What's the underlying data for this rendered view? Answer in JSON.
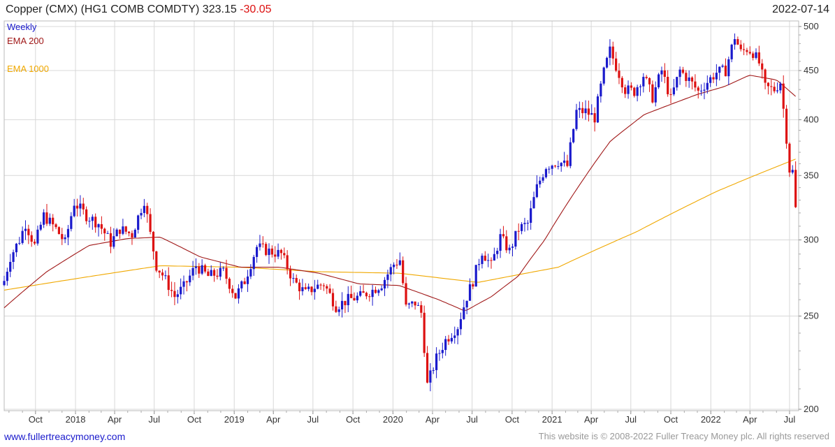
{
  "header": {
    "title": "Copper (CMX) (HG1 COMB COMDTY) 323.15",
    "change": "-30.05",
    "date": "2022-07-14"
  },
  "legend": {
    "period": "Weekly",
    "ema200": "EMA 200",
    "ema1000": "EMA 1000"
  },
  "footer": {
    "site_link": "www.fullertreacymoney.com",
    "copyright": "This website is © 2008-2022 Fuller Treacy Money plc. All rights reserved"
  },
  "colors": {
    "up": "#1a1acc",
    "down": "#dd1111",
    "ema200": "#a01818",
    "ema1000": "#f0a800",
    "grid": "#d8d8d8",
    "change_text": "#dd1111",
    "period_text": "#1a1acc",
    "link_text": "#1a1acc"
  },
  "chart_data": {
    "type": "candlestick",
    "interval": "weekly",
    "scale": "log",
    "ylim": [
      200,
      505
    ],
    "y_ticks": [
      200,
      250,
      300,
      350,
      400,
      450,
      500
    ],
    "x_start": "2017-07-21",
    "x_end": "2022-07-22",
    "x_ticks": [
      {
        "date": "2017-10-01",
        "label": "Oct"
      },
      {
        "date": "2018-01-01",
        "label": "2018"
      },
      {
        "date": "2018-04-01",
        "label": "Apr"
      },
      {
        "date": "2018-07-01",
        "label": "Jul"
      },
      {
        "date": "2018-10-01",
        "label": "Oct"
      },
      {
        "date": "2019-01-01",
        "label": "2019"
      },
      {
        "date": "2019-04-01",
        "label": "Apr"
      },
      {
        "date": "2019-07-01",
        "label": "Jul"
      },
      {
        "date": "2019-10-01",
        "label": "Oct"
      },
      {
        "date": "2020-01-01",
        "label": "2020"
      },
      {
        "date": "2020-04-01",
        "label": "Apr"
      },
      {
        "date": "2020-07-01",
        "label": "Jul"
      },
      {
        "date": "2020-10-01",
        "label": "Oct"
      },
      {
        "date": "2021-01-01",
        "label": "2021"
      },
      {
        "date": "2021-04-01",
        "label": "Apr"
      },
      {
        "date": "2021-07-01",
        "label": "Jul"
      },
      {
        "date": "2021-10-01",
        "label": "Oct"
      },
      {
        "date": "2022-01-01",
        "label": "2022"
      },
      {
        "date": "2022-04-01",
        "label": "Apr"
      },
      {
        "date": "2022-07-01",
        "label": "Jul"
      }
    ],
    "close_keypoints": [
      [
        "2017-07-21",
        272
      ],
      [
        "2017-08-04",
        288
      ],
      [
        "2017-08-25",
        300
      ],
      [
        "2017-09-08",
        312
      ],
      [
        "2017-09-29",
        296
      ],
      [
        "2017-10-20",
        318
      ],
      [
        "2017-11-17",
        308
      ],
      [
        "2017-12-08",
        298
      ],
      [
        "2017-12-29",
        328
      ],
      [
        "2018-01-26",
        318
      ],
      [
        "2018-02-23",
        312
      ],
      [
        "2018-03-23",
        298
      ],
      [
        "2018-04-13",
        308
      ],
      [
        "2018-05-11",
        304
      ],
      [
        "2018-06-08",
        330
      ],
      [
        "2018-06-22",
        304
      ],
      [
        "2018-07-06",
        282
      ],
      [
        "2018-07-20",
        276
      ],
      [
        "2018-08-17",
        262
      ],
      [
        "2018-09-07",
        268
      ],
      [
        "2018-10-05",
        282
      ],
      [
        "2018-11-02",
        275
      ],
      [
        "2018-12-07",
        278
      ],
      [
        "2019-01-04",
        262
      ],
      [
        "2019-01-25",
        272
      ],
      [
        "2019-02-22",
        295
      ],
      [
        "2019-03-22",
        292
      ],
      [
        "2019-04-19",
        290
      ],
      [
        "2019-05-17",
        272
      ],
      [
        "2019-06-14",
        264
      ],
      [
        "2019-07-05",
        268
      ],
      [
        "2019-07-26",
        270
      ],
      [
        "2019-08-23",
        256
      ],
      [
        "2019-09-20",
        260
      ],
      [
        "2019-10-18",
        262
      ],
      [
        "2019-11-15",
        266
      ],
      [
        "2019-12-06",
        270
      ],
      [
        "2020-01-03",
        283
      ],
      [
        "2020-01-17",
        286
      ],
      [
        "2020-01-31",
        255
      ],
      [
        "2020-02-21",
        258
      ],
      [
        "2020-03-06",
        252
      ],
      [
        "2020-03-20",
        212
      ],
      [
        "2020-04-10",
        226
      ],
      [
        "2020-05-01",
        236
      ],
      [
        "2020-05-29",
        244
      ],
      [
        "2020-06-19",
        262
      ],
      [
        "2020-07-03",
        272
      ],
      [
        "2020-07-24",
        292
      ],
      [
        "2020-08-14",
        282
      ],
      [
        "2020-09-04",
        302
      ],
      [
        "2020-09-25",
        292
      ],
      [
        "2020-10-16",
        308
      ],
      [
        "2020-11-06",
        312
      ],
      [
        "2020-11-27",
        340
      ],
      [
        "2020-12-18",
        358
      ],
      [
        "2021-01-15",
        362
      ],
      [
        "2021-02-05",
        358
      ],
      [
        "2021-02-26",
        408
      ],
      [
        "2021-03-19",
        408
      ],
      [
        "2021-04-09",
        402
      ],
      [
        "2021-04-30",
        448
      ],
      [
        "2021-05-14",
        472
      ],
      [
        "2021-05-28",
        455
      ],
      [
        "2021-06-18",
        430
      ],
      [
        "2021-07-09",
        428
      ],
      [
        "2021-07-30",
        445
      ],
      [
        "2021-08-20",
        422
      ],
      [
        "2021-09-10",
        450
      ],
      [
        "2021-10-01",
        420
      ],
      [
        "2021-10-22",
        450
      ],
      [
        "2021-11-12",
        440
      ],
      [
        "2021-12-03",
        428
      ],
      [
        "2021-12-24",
        438
      ],
      [
        "2022-01-14",
        448
      ],
      [
        "2022-02-04",
        450
      ],
      [
        "2022-02-25",
        488
      ],
      [
        "2022-03-11",
        470
      ],
      [
        "2022-03-25",
        474
      ],
      [
        "2022-04-08",
        470
      ],
      [
        "2022-04-22",
        458
      ],
      [
        "2022-05-06",
        432
      ],
      [
        "2022-05-27",
        430
      ],
      [
        "2022-06-10",
        438
      ],
      [
        "2022-06-24",
        383
      ],
      [
        "2022-07-01",
        355
      ],
      [
        "2022-07-08",
        353.2
      ],
      [
        "2022-07-15",
        323.15
      ]
    ],
    "ema200_keypoints": [
      [
        "2017-07-21",
        255
      ],
      [
        "2017-10-27",
        278
      ],
      [
        "2018-02-01",
        296
      ],
      [
        "2018-05-01",
        301
      ],
      [
        "2018-07-15",
        302
      ],
      [
        "2018-10-15",
        288
      ],
      [
        "2019-01-15",
        281
      ],
      [
        "2019-04-15",
        281
      ],
      [
        "2019-07-15",
        277
      ],
      [
        "2019-10-15",
        270
      ],
      [
        "2020-01-15",
        269
      ],
      [
        "2020-04-15",
        260
      ],
      [
        "2020-06-15",
        253
      ],
      [
        "2020-08-15",
        262
      ],
      [
        "2020-10-15",
        275
      ],
      [
        "2020-12-15",
        300
      ],
      [
        "2021-03-01",
        340
      ],
      [
        "2021-05-15",
        380
      ],
      [
        "2021-08-01",
        405
      ],
      [
        "2021-10-01",
        415
      ],
      [
        "2021-12-01",
        425
      ],
      [
        "2022-02-01",
        433
      ],
      [
        "2022-03-31",
        445
      ],
      [
        "2022-06-01",
        440
      ],
      [
        "2022-07-15",
        423
      ]
    ],
    "ema1000_keypoints": [
      [
        "2017-07-21",
        266
      ],
      [
        "2018-01-15",
        274
      ],
      [
        "2018-07-15",
        282
      ],
      [
        "2019-01-15",
        281
      ],
      [
        "2019-07-15",
        278
      ],
      [
        "2020-01-15",
        277
      ],
      [
        "2020-07-15",
        271
      ],
      [
        "2021-01-15",
        281
      ],
      [
        "2021-07-15",
        306
      ],
      [
        "2022-01-15",
        337
      ],
      [
        "2022-07-15",
        364
      ]
    ]
  }
}
